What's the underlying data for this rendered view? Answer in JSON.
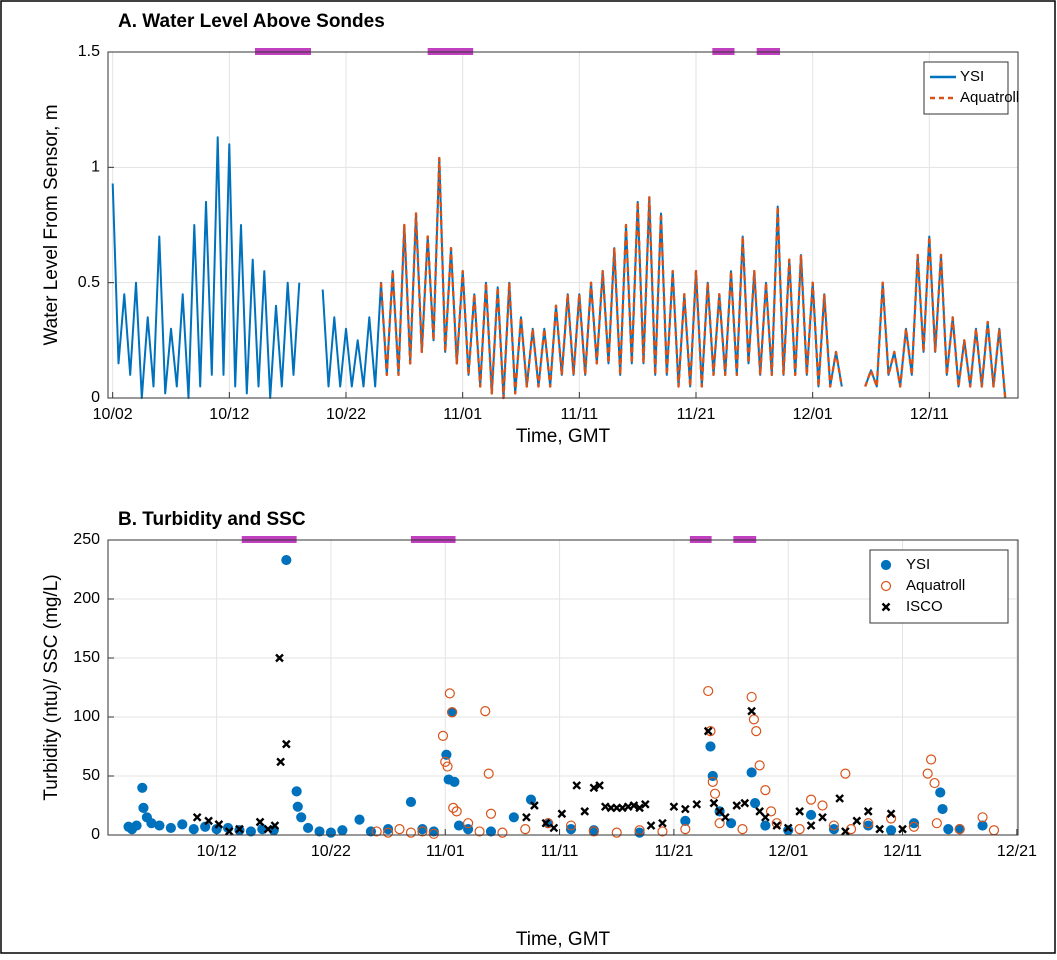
{
  "chart_data": [
    {
      "type": "line",
      "title": "A. Water Level Above Sondes",
      "xlabel": "Time, GMT",
      "ylabel": "Water Level From Sensor, m",
      "xlim": [
        0.6,
        78.6
      ],
      "ylim": [
        0,
        1.5
      ],
      "yticks": [
        0,
        0.5,
        1,
        1.5
      ],
      "xticks": [
        {
          "value": 1,
          "label": "10/02"
        },
        {
          "value": 11,
          "label": "10/12"
        },
        {
          "value": 21,
          "label": "10/22"
        },
        {
          "value": 31,
          "label": "11/01"
        },
        {
          "value": 41,
          "label": "11/11"
        },
        {
          "value": 51,
          "label": "11/21"
        },
        {
          "value": 61,
          "label": "12/01"
        },
        {
          "value": 71,
          "label": "12/11"
        }
      ],
      "grid": true,
      "legend": "upper right",
      "periods": [
        [
          13.2,
          18
        ],
        [
          28,
          31.9
        ],
        [
          52.4,
          54.3
        ],
        [
          56.2,
          58.2
        ]
      ],
      "period_color": "#c040c0",
      "x": [
        1,
        1.5,
        2,
        2.5,
        3,
        3.5,
        4,
        4.5,
        5,
        5.5,
        6,
        6.5,
        7,
        7.5,
        8,
        8.5,
        9,
        9.5,
        10,
        10.5,
        11,
        11.5,
        12,
        12.5,
        13,
        13.5,
        14,
        14.5,
        15,
        15.5,
        16,
        16.5,
        17,
        17.5,
        18,
        18.5,
        19,
        19.5,
        20,
        20.5,
        21,
        21.5,
        22,
        22.5,
        23,
        23.5,
        24,
        24.5,
        25,
        25.5,
        26,
        26.5,
        27,
        27.5,
        28,
        28.5,
        29,
        29.5,
        30,
        30.5,
        31,
        31.5,
        32,
        32.5,
        33,
        33.5,
        34,
        34.5,
        35,
        35.5,
        36,
        36.5,
        37,
        37.5,
        38,
        38.5,
        39,
        39.5,
        40,
        40.5,
        41,
        41.5,
        42,
        42.5,
        43,
        43.5,
        44,
        44.5,
        45,
        45.5,
        46,
        46.5,
        47,
        47.5,
        48,
        48.5,
        49,
        49.5,
        50,
        50.5,
        51,
        51.5,
        52,
        52.5,
        53,
        53.5,
        54,
        54.5,
        55,
        55.5,
        56,
        56.5,
        57,
        57.5,
        58,
        58.5,
        59,
        59.5,
        60,
        60.5,
        61,
        61.5,
        62,
        62.5,
        63,
        63.5,
        64,
        64.5,
        65,
        65.5,
        66,
        66.5,
        67,
        67.5,
        68,
        68.5,
        69,
        69.5,
        70,
        70.5,
        71,
        71.5,
        72,
        72.5,
        73,
        73.5,
        74,
        74.5,
        75,
        75.5,
        76,
        76.5,
        77,
        77.5
      ],
      "series": [
        {
          "name": "YSI",
          "color": "#0072bd",
          "dash": false,
          "values": [
            0.93,
            0.15,
            0.45,
            0.1,
            0.5,
            0,
            0.35,
            0.05,
            0.7,
            0.02,
            0.3,
            0.05,
            0.45,
            0,
            0.75,
            0.05,
            0.85,
            0.1,
            1.13,
            0.1,
            1.1,
            0.05,
            0.75,
            0.02,
            0.6,
            0.05,
            0.55,
            0,
            0.4,
            0.05,
            0.5,
            0.1,
            0.5,
            null,
            null,
            null,
            0.47,
            0.05,
            0.35,
            0.05,
            0.3,
            0.05,
            0.25,
            0.05,
            0.35,
            0.05,
            0.5,
            0.1,
            0.55,
            0.1,
            0.75,
            0.15,
            0.8,
            0.2,
            0.7,
            0.25,
            1.04,
            0.2,
            0.65,
            0.15,
            0.55,
            0.1,
            0.45,
            0.05,
            0.5,
            0.02,
            0.48,
            0,
            0.5,
            0.02,
            0.35,
            0.05,
            0.3,
            0.05,
            0.3,
            0.05,
            0.4,
            0.1,
            0.45,
            0.1,
            0.45,
            0.1,
            0.5,
            0.15,
            0.55,
            0.15,
            0.65,
            0.1,
            0.75,
            0.15,
            0.85,
            0.15,
            0.87,
            0.1,
            0.8,
            0.1,
            0.55,
            0.05,
            0.45,
            0.05,
            0.55,
            0.05,
            0.5,
            0.1,
            0.45,
            0.1,
            0.55,
            0.1,
            0.7,
            0.15,
            0.55,
            0.1,
            0.5,
            0.1,
            0.83,
            0.1,
            0.6,
            0.1,
            0.62,
            0.1,
            0.5,
            0.05,
            0.45,
            0.05,
            0.2,
            0.05,
            null,
            null,
            null,
            0.05,
            0.12,
            0.05,
            0.5,
            0.1,
            0.2,
            0.05,
            0.3,
            0.1,
            0.62,
            0.2,
            0.7,
            0.2,
            0.62,
            0.1,
            0.35,
            0.05,
            0.25,
            0.05,
            0.3,
            0.05,
            0.33,
            0.05,
            0.3,
            0
          ]
        },
        {
          "name": "Aquatroll",
          "color": "#d95319",
          "dash": true,
          "values": [
            null,
            null,
            null,
            null,
            null,
            null,
            null,
            null,
            null,
            null,
            null,
            null,
            null,
            null,
            null,
            null,
            null,
            null,
            null,
            null,
            null,
            null,
            null,
            null,
            null,
            null,
            null,
            null,
            null,
            null,
            null,
            null,
            null,
            null,
            null,
            null,
            null,
            null,
            null,
            null,
            null,
            null,
            null,
            null,
            null,
            null,
            0.5,
            0.1,
            0.55,
            0.1,
            0.75,
            0.15,
            0.8,
            0.2,
            0.7,
            0.25,
            1.04,
            0.2,
            0.65,
            0.15,
            0.55,
            0.1,
            0.45,
            0.05,
            0.5,
            0.02,
            0.48,
            0,
            0.5,
            0.02,
            0.35,
            0.05,
            0.3,
            0.05,
            0.3,
            0.05,
            0.4,
            0.1,
            0.45,
            0.1,
            0.45,
            0.1,
            0.5,
            0.15,
            0.55,
            0.15,
            0.65,
            0.1,
            0.75,
            0.15,
            0.85,
            0.15,
            0.87,
            0.1,
            0.8,
            0.1,
            0.55,
            0.05,
            0.45,
            0.05,
            0.55,
            0.05,
            0.5,
            0.1,
            0.45,
            0.1,
            0.55,
            0.1,
            0.7,
            0.15,
            0.55,
            0.1,
            0.5,
            0.1,
            0.83,
            0.1,
            0.6,
            0.1,
            0.62,
            0.1,
            0.5,
            0.05,
            0.45,
            0.05,
            0.2,
            0.05,
            null,
            null,
            null,
            0.05,
            0.12,
            0.05,
            0.5,
            0.1,
            0.2,
            0.05,
            0.3,
            0.1,
            0.62,
            0.2,
            0.7,
            0.2,
            0.62,
            0.1,
            0.35,
            0.05,
            0.25,
            0.05,
            0.3,
            0.05,
            0.33,
            0.05,
            0.3,
            0
          ]
        }
      ]
    },
    {
      "type": "scatter",
      "title": "B. Turbidity and SSC",
      "xlabel": "Time, GMT",
      "ylabel": "Turbidity (ntu)/ SSC (mg/L)",
      "xlim": [
        1.5,
        81.1
      ],
      "ylim": [
        0,
        250
      ],
      "yticks": [
        0,
        50,
        100,
        150,
        200,
        250
      ],
      "xticks": [
        {
          "value": 11,
          "label": "10/12"
        },
        {
          "value": 21,
          "label": "10/22"
        },
        {
          "value": 31,
          "label": "11/01"
        },
        {
          "value": 41,
          "label": "11/11"
        },
        {
          "value": 51,
          "label": "11/21"
        },
        {
          "value": 61,
          "label": "12/01"
        },
        {
          "value": 71,
          "label": "12/11"
        },
        {
          "value": 81,
          "label": "12/21"
        }
      ],
      "grid": true,
      "legend": "upper right",
      "periods": [
        [
          13.2,
          18
        ],
        [
          28,
          31.9
        ],
        [
          52.4,
          54.3
        ],
        [
          56.2,
          58.2
        ]
      ],
      "period_color": "#c040c0",
      "series": [
        {
          "name": "YSI",
          "color": "#0072bd",
          "marker": "filled",
          "x": [
            3.3,
            3.6,
            4,
            4.5,
            4.6,
            4.9,
            5.3,
            6,
            7,
            8,
            9,
            10,
            11,
            12,
            13,
            14,
            15,
            16,
            17.1,
            18,
            18.1,
            18.4,
            19,
            20,
            21,
            22,
            23.5,
            24.5,
            26,
            28,
            29,
            30,
            31.1,
            31.3,
            31.6,
            31.8,
            32.2,
            33,
            35,
            37,
            38.5,
            40,
            42,
            44,
            48,
            52,
            54.2,
            54.4,
            55,
            56,
            57.8,
            58.1,
            59,
            61,
            63,
            65,
            68,
            70,
            72,
            74.3,
            74.5,
            75,
            76,
            78
          ],
          "values": [
            7,
            5,
            8,
            40,
            23,
            15,
            10,
            8,
            6,
            9,
            5,
            7,
            5,
            6,
            4,
            3,
            5,
            4,
            233,
            37,
            24,
            15,
            6,
            3,
            2,
            4,
            13,
            3,
            5,
            28,
            5,
            3,
            68,
            47,
            104,
            45,
            8,
            5,
            3,
            15,
            30,
            10,
            5,
            4,
            2,
            12,
            75,
            50,
            20,
            10,
            53,
            27,
            8,
            4,
            17,
            5,
            8,
            4,
            10,
            36,
            22,
            5,
            5,
            8
          ]
        },
        {
          "name": "Aquatroll",
          "color": "#d95319",
          "marker": "open",
          "x": [
            25,
            26,
            27,
            28,
            29,
            30,
            30.8,
            31,
            31.2,
            31.4,
            31.6,
            31.7,
            32,
            33,
            34,
            34.5,
            34.8,
            35,
            36,
            38,
            40,
            42,
            44,
            46,
            48,
            50,
            52,
            54,
            54.2,
            54.4,
            54.6,
            55,
            57,
            57.8,
            58,
            58.2,
            58.5,
            59,
            59.5,
            60,
            62,
            63,
            64,
            65,
            66,
            66.5,
            68,
            70,
            72,
            73.2,
            73.5,
            73.8,
            74,
            76,
            78,
            79
          ],
          "values": [
            3,
            2,
            5,
            2,
            3,
            1,
            84,
            62,
            58,
            120,
            104,
            23,
            20,
            10,
            3,
            105,
            52,
            18,
            2,
            5,
            10,
            8,
            3,
            2,
            4,
            3,
            5,
            122,
            88,
            45,
            35,
            10,
            5,
            117,
            98,
            88,
            59,
            38,
            20,
            10,
            5,
            30,
            25,
            8,
            52,
            5,
            10,
            14,
            7,
            52,
            64,
            44,
            10,
            5,
            15,
            4
          ]
        },
        {
          "name": "ISCO",
          "color": "#000000",
          "marker": "x",
          "x": [
            9.3,
            10.3,
            11.2,
            12.1,
            13,
            14.8,
            15.5,
            16.1,
            16.5,
            16.6,
            17.1,
            38.1,
            38.8,
            39.8,
            40.5,
            41.2,
            42.5,
            43.2,
            44,
            44.5,
            45,
            45.5,
            46,
            46.5,
            47,
            47.5,
            48,
            48.5,
            49,
            50,
            51,
            52,
            53,
            54,
            54.5,
            55,
            55.5,
            56.5,
            57.2,
            57.8,
            58.5,
            59,
            60,
            61,
            62,
            63,
            64,
            65.5,
            66,
            67,
            68,
            69,
            70,
            71
          ],
          "values": [
            15,
            12,
            9,
            3,
            5,
            11,
            5,
            8,
            150,
            62,
            77,
            15,
            25,
            10,
            6,
            18,
            42,
            20,
            40,
            42,
            24,
            23,
            23,
            23,
            24,
            25,
            23,
            26,
            8,
            10,
            24,
            22,
            26,
            88,
            27,
            20,
            15,
            25,
            27,
            105,
            20,
            15,
            8,
            6,
            20,
            8,
            15,
            31,
            3,
            12,
            20,
            5,
            18,
            5
          ]
        }
      ]
    }
  ]
}
